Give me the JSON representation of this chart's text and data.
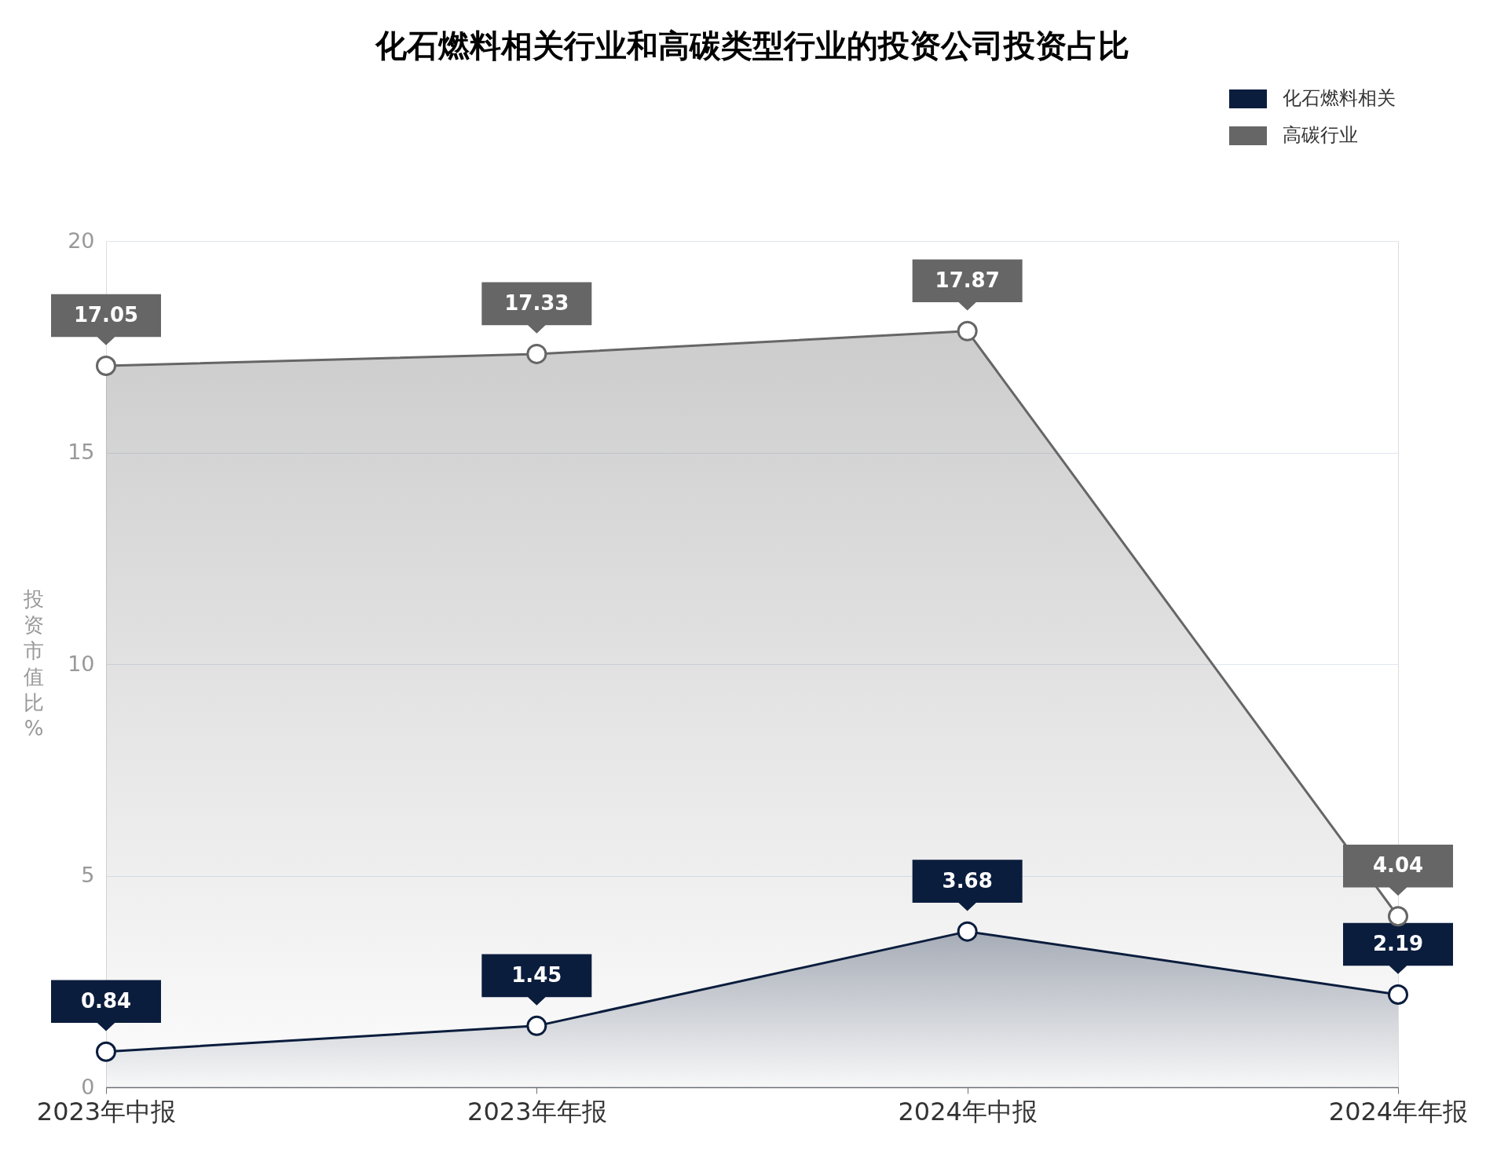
{
  "chart_data": {
    "type": "area",
    "title": "化石燃料相关行业和高碳类型行业的投资公司投资占比",
    "ylabel": "投资市值比%",
    "categories": [
      "2023年中报",
      "2023年年报",
      "2024年中报",
      "2024年年报"
    ],
    "series": [
      {
        "name": "化石燃料相关",
        "color": "#0b1d3d",
        "values": [
          0.84,
          1.45,
          3.68,
          2.19
        ]
      },
      {
        "name": "高碳行业",
        "color": "#666666",
        "values": [
          17.05,
          17.33,
          17.87,
          4.04
        ]
      }
    ],
    "ylim": [
      0,
      20
    ],
    "yticks": [
      0,
      5,
      10,
      15,
      20
    ],
    "grid": "y",
    "legend": "top right",
    "marker": "circle",
    "data_labels": true
  }
}
